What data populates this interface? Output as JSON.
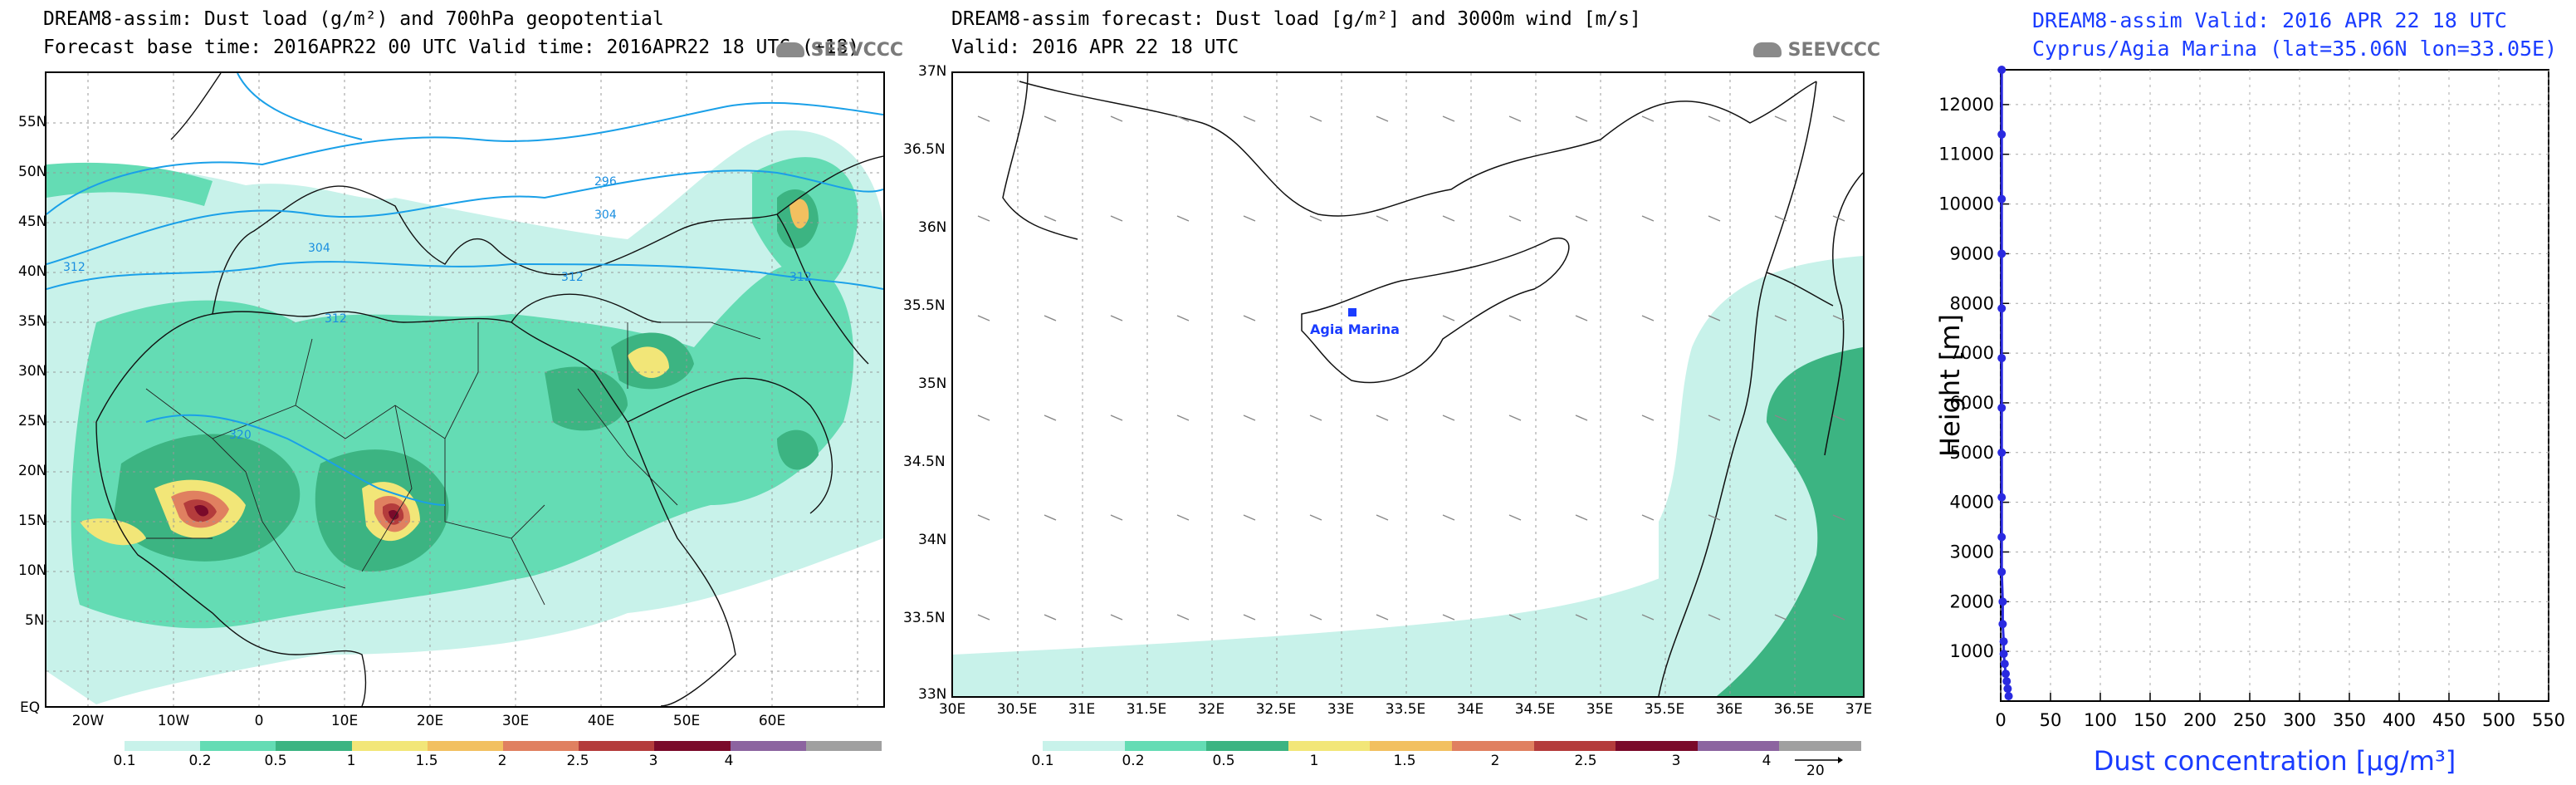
{
  "map1": {
    "title_line1": "DREAM8-assim: Dust load (g/m²) and 700hPa geopotential",
    "title_line2": "Forecast base time: 2016APR22 00 UTC  Valid time: 2016APR22 18 UTC  (+18)",
    "logo": "SEEVCCC",
    "lat_labels": [
      "55N",
      "50N",
      "45N",
      "40N",
      "35N",
      "30N",
      "25N",
      "20N",
      "15N",
      "10N",
      "5N",
      "EQ"
    ],
    "lon_labels": [
      "20W",
      "10W",
      "0",
      "10E",
      "20E",
      "30E",
      "40E",
      "50E",
      "60E"
    ],
    "contour_labels": [
      "296",
      "304",
      "304",
      "312",
      "312",
      "312",
      "312",
      "320"
    ],
    "colorbar_labels": [
      "0.1",
      "0.2",
      "0.5",
      "1",
      "1.5",
      "2",
      "2.5",
      "3",
      "4"
    ]
  },
  "map2": {
    "title_line1": "DREAM8-assim forecast: Dust load [g/m²] and 3000m wind [m/s]",
    "title_line2": "Valid: 2016 APR 22  18 UTC",
    "logo": "SEEVCCC",
    "station_label": "Agia Marina",
    "lat_labels": [
      "37N",
      "36.5N",
      "36N",
      "35.5N",
      "35N",
      "34.5N",
      "34N",
      "33.5N",
      "33N"
    ],
    "lon_labels": [
      "30E",
      "30.5E",
      "31E",
      "31.5E",
      "32E",
      "32.5E",
      "33E",
      "33.5E",
      "34E",
      "34.5E",
      "35E",
      "35.5E",
      "36E",
      "36.5E",
      "37E"
    ],
    "colorbar_labels": [
      "0.1",
      "0.2",
      "0.5",
      "1",
      "1.5",
      "2",
      "2.5",
      "3",
      "4"
    ],
    "wind_ref_label": "20"
  },
  "profile": {
    "title_line1": "DREAM8-assim  Valid: 2016 APR 22  18 UTC",
    "title_line2": "Cyprus/Agia Marina (lat=35.06N lon=33.05E)",
    "ylabel": "Height [m]",
    "xlabel": "Dust concentration [µg/m³]"
  },
  "chart_data": {
    "type": "line",
    "title": "DREAM8-assim  Valid: 2016 APR 22  18 UTC",
    "subtitle": "Cyprus/Agia Marina (lat=35.06N lon=33.05E)",
    "xlabel": "Dust concentration [µg/m³]",
    "ylabel": "Height [m]",
    "xlim": [
      0,
      550
    ],
    "ylim": [
      0,
      12700
    ],
    "xticks": [
      0,
      50,
      100,
      150,
      200,
      250,
      300,
      350,
      400,
      450,
      500,
      550
    ],
    "yticks": [
      1000,
      2000,
      3000,
      4000,
      5000,
      6000,
      7000,
      8000,
      9000,
      10000,
      11000,
      12000
    ],
    "grid": true,
    "series": [
      {
        "color": "#2a2ae0",
        "x": [
          8,
          7,
          6,
          5,
          4,
          3,
          3,
          2,
          2,
          1,
          1,
          1,
          1,
          1,
          1,
          1,
          1,
          1,
          1,
          1
        ],
        "y": [
          100,
          250,
          400,
          550,
          750,
          950,
          1200,
          1550,
          2000,
          2600,
          3300,
          4100,
          5000,
          5900,
          6900,
          7900,
          9000,
          10100,
          11400,
          12700
        ]
      }
    ]
  },
  "colors": {
    "title_blue": "#1a3cff",
    "contour": "#1aa0e8",
    "c01": "#c8f2ea",
    "c02": "#64dcb4",
    "c05": "#3cb482",
    "c1": "#f2e678",
    "c15": "#f2c060",
    "c2": "#e08060",
    "c25": "#b43c3c",
    "c3": "#7a0a2a",
    "c4": "#8c64a0",
    "c5": "#a0a0a0"
  }
}
